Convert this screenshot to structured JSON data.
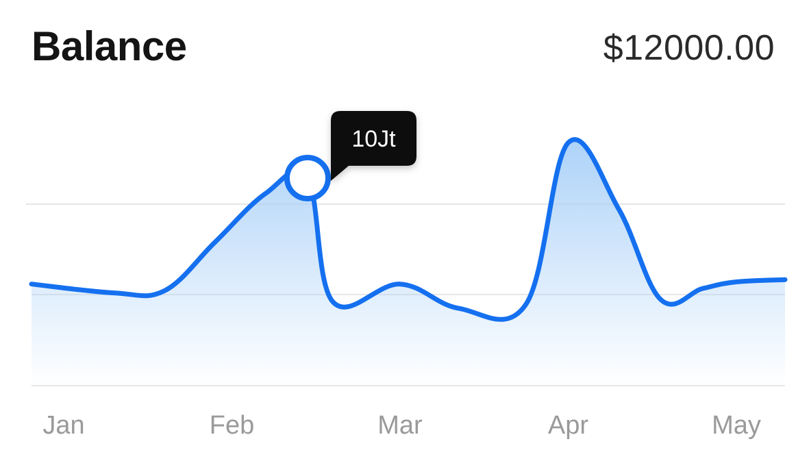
{
  "header": {
    "title": "Balance",
    "amount": "$12000.00"
  },
  "tooltip": {
    "label": "10Jt"
  },
  "colors": {
    "line": "#1570ef",
    "fill": "#a9d0f8",
    "grid": "#e6e6e6",
    "tooltip_bg": "#0d0d0d",
    "tick_text": "#9a9a9a"
  },
  "chart_data": {
    "type": "area",
    "categories": [
      "Jan",
      "Feb",
      "Mar",
      "Apr",
      "May"
    ],
    "x": [
      0,
      0.3,
      0.6,
      0.9,
      1.2,
      1.45,
      1.6,
      2.0,
      2.35,
      2.75,
      3.0,
      3.3,
      3.55,
      3.8,
      4.0,
      4.2
    ],
    "values": [
      4.6,
      4.2,
      4.3,
      6.5,
      8.7,
      9.4,
      3.8,
      4.6,
      3.5,
      3.7,
      11.0,
      8.0,
      3.9,
      4.4,
      4.7,
      4.8
    ],
    "highlight": {
      "x": 1.45,
      "value": 9.4,
      "label": "10Jt"
    },
    "ylim": [
      0,
      12.5
    ],
    "grid": true
  }
}
